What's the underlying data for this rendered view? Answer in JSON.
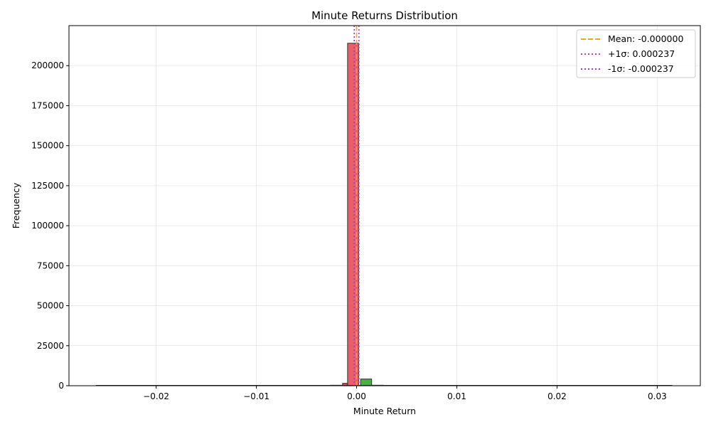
{
  "chart_data": {
    "type": "bar",
    "title": "Minute Returns Distribution",
    "xlabel": "Minute Return",
    "ylabel": "Frequency",
    "xlim": [
      -0.0287,
      0.0343
    ],
    "ylim": [
      0,
      225000
    ],
    "x_ticks": [
      -0.02,
      -0.01,
      0.0,
      0.01,
      0.02,
      0.03
    ],
    "x_tick_labels": [
      "−0.02",
      "−0.01",
      "0.00",
      "0.01",
      "0.02",
      "0.03"
    ],
    "y_ticks": [
      0,
      25000,
      50000,
      75000,
      100000,
      125000,
      150000,
      175000,
      200000
    ],
    "y_tick_labels": [
      "0",
      "25000",
      "50000",
      "75000",
      "100000",
      "125000",
      "150000",
      "175000",
      "200000"
    ],
    "grid": true,
    "bins": [
      {
        "x0": -0.0026,
        "x1": -0.0014,
        "value": 300,
        "color": "#d62728"
      },
      {
        "x0": -0.0014,
        "x1": -0.0009,
        "value": 1500,
        "color": "#d62728"
      },
      {
        "x0": -0.0009,
        "x1": 0.0002,
        "value": 214000,
        "color": "#e8414f"
      },
      {
        "x0": 0.0004,
        "x1": 0.0015,
        "value": 4200,
        "color": "#2ca02c"
      },
      {
        "x0": 0.0015,
        "x1": 0.0027,
        "value": 300,
        "color": "#2ca02c"
      }
    ],
    "reference_lines": [
      {
        "label": "Mean: -0.000000",
        "x": 0.0,
        "color": "#ff9f1a",
        "style": "dashed"
      },
      {
        "label": "+1σ: 0.000237",
        "x": 0.000237,
        "color": "#c13fc7",
        "style": "dotted"
      },
      {
        "label": "-1σ: -0.000237",
        "x": -0.000237,
        "color": "#9b3fc7",
        "style": "dotted"
      }
    ],
    "legend_position": "top-right",
    "colors": {
      "edge": "#333333",
      "negative": "#d62728",
      "positive": "#2ca02c"
    }
  }
}
